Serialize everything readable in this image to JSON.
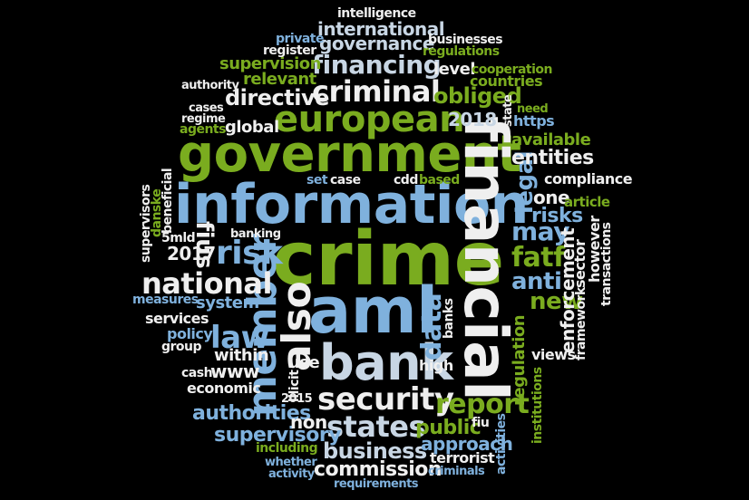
{
  "colors": {
    "white": "#efefef",
    "green": "#7aac1f",
    "blue": "#7fb1dd",
    "light": "#c8d6e4",
    "background": "#000000"
  },
  "words": [
    {
      "text": "crime",
      "color": "green"
    },
    {
      "text": "information",
      "color": "blue"
    },
    {
      "text": "government",
      "color": "green"
    },
    {
      "text": "financial",
      "color": "white"
    },
    {
      "text": "aml",
      "color": "blue"
    },
    {
      "text": "bank",
      "color": "light"
    },
    {
      "text": "european",
      "color": "green"
    },
    {
      "text": "criminal",
      "color": "white"
    },
    {
      "text": "security",
      "color": "white"
    },
    {
      "text": "financing",
      "color": "light"
    },
    {
      "text": "member",
      "color": "blue"
    },
    {
      "text": "also",
      "color": "white"
    },
    {
      "text": "risk",
      "color": "blue"
    },
    {
      "text": "national",
      "color": "white"
    },
    {
      "text": "states",
      "color": "light"
    },
    {
      "text": "report",
      "color": "green"
    },
    {
      "text": "law",
      "color": "blue"
    },
    {
      "text": "data",
      "color": "blue"
    },
    {
      "text": "fatf",
      "color": "green"
    },
    {
      "text": "anti",
      "color": "blue"
    },
    {
      "text": "new",
      "color": "green"
    },
    {
      "text": "may",
      "color": "blue"
    },
    {
      "text": "legal",
      "color": "blue"
    },
    {
      "text": "risks",
      "color": "blue"
    },
    {
      "text": "entities",
      "color": "white"
    },
    {
      "text": "commission",
      "color": "white"
    },
    {
      "text": "business",
      "color": "light"
    },
    {
      "text": "public",
      "color": "green"
    },
    {
      "text": "approach",
      "color": "blue"
    },
    {
      "text": "supervisory",
      "color": "blue"
    },
    {
      "text": "authorities",
      "color": "blue"
    },
    {
      "text": "directive",
      "color": "white"
    },
    {
      "text": "obliged",
      "color": "green"
    },
    {
      "text": "international",
      "color": "light"
    },
    {
      "text": "governance",
      "color": "light"
    },
    {
      "text": "intelligence",
      "color": "white"
    },
    {
      "text": "businesses",
      "color": "white"
    },
    {
      "text": "regulations",
      "color": "green"
    },
    {
      "text": "supervision",
      "color": "green"
    },
    {
      "text": "relevant",
      "color": "green"
    },
    {
      "text": "private",
      "color": "blue"
    },
    {
      "text": "register",
      "color": "white"
    },
    {
      "text": "level",
      "color": "white"
    },
    {
      "text": "cooperation",
      "color": "green"
    },
    {
      "text": "countries",
      "color": "green"
    },
    {
      "text": "authority",
      "color": "white"
    },
    {
      "text": "cases",
      "color": "white"
    },
    {
      "text": "regime",
      "color": "white"
    },
    {
      "text": "agents",
      "color": "green"
    },
    {
      "text": "global",
      "color": "white"
    },
    {
      "text": "2018",
      "color": "light"
    },
    {
      "text": "https",
      "color": "blue"
    },
    {
      "text": "need",
      "color": "green"
    },
    {
      "text": "state",
      "color": "white"
    },
    {
      "text": "available",
      "color": "green"
    },
    {
      "text": "compliance",
      "color": "white"
    },
    {
      "text": "one",
      "color": "white"
    },
    {
      "text": "article",
      "color": "green"
    },
    {
      "text": "set",
      "color": "blue"
    },
    {
      "text": "case",
      "color": "white"
    },
    {
      "text": "cdd",
      "color": "white"
    },
    {
      "text": "based",
      "color": "green"
    },
    {
      "text": "fiu",
      "color": "white"
    },
    {
      "text": "fius",
      "color": "white"
    },
    {
      "text": "beneficial",
      "color": "white"
    },
    {
      "text": "supervisors",
      "color": "white"
    },
    {
      "text": "danske",
      "color": "green"
    },
    {
      "text": "5mld",
      "color": "white"
    },
    {
      "text": "banking",
      "color": "white"
    },
    {
      "text": "2017",
      "color": "white"
    },
    {
      "text": "measures",
      "color": "blue"
    },
    {
      "text": "system",
      "color": "blue"
    },
    {
      "text": "services",
      "color": "white"
    },
    {
      "text": "policy",
      "color": "blue"
    },
    {
      "text": "group",
      "color": "white"
    },
    {
      "text": "within",
      "color": "white"
    },
    {
      "text": "cash",
      "color": "white"
    },
    {
      "text": "www",
      "color": "white"
    },
    {
      "text": "economic",
      "color": "white"
    },
    {
      "text": "use",
      "color": "white"
    },
    {
      "text": "illicit",
      "color": "white"
    },
    {
      "text": "high",
      "color": "white"
    },
    {
      "text": "2015",
      "color": "white"
    },
    {
      "text": "non",
      "color": "white"
    },
    {
      "text": "banks",
      "color": "white"
    },
    {
      "text": "enforcement",
      "color": "white"
    },
    {
      "text": "framework",
      "color": "white"
    },
    {
      "text": "sector",
      "color": "white"
    },
    {
      "text": "however",
      "color": "white"
    },
    {
      "text": "transactions",
      "color": "white"
    },
    {
      "text": "views",
      "color": "white"
    },
    {
      "text": "regulation",
      "color": "green"
    },
    {
      "text": "institutions",
      "color": "green"
    },
    {
      "text": "including",
      "color": "green"
    },
    {
      "text": "terrorist",
      "color": "white"
    },
    {
      "text": "whether",
      "color": "blue"
    },
    {
      "text": "activity",
      "color": "blue"
    },
    {
      "text": "criminals",
      "color": "blue"
    },
    {
      "text": "requirements",
      "color": "blue"
    },
    {
      "text": "activities",
      "color": "blue"
    }
  ]
}
